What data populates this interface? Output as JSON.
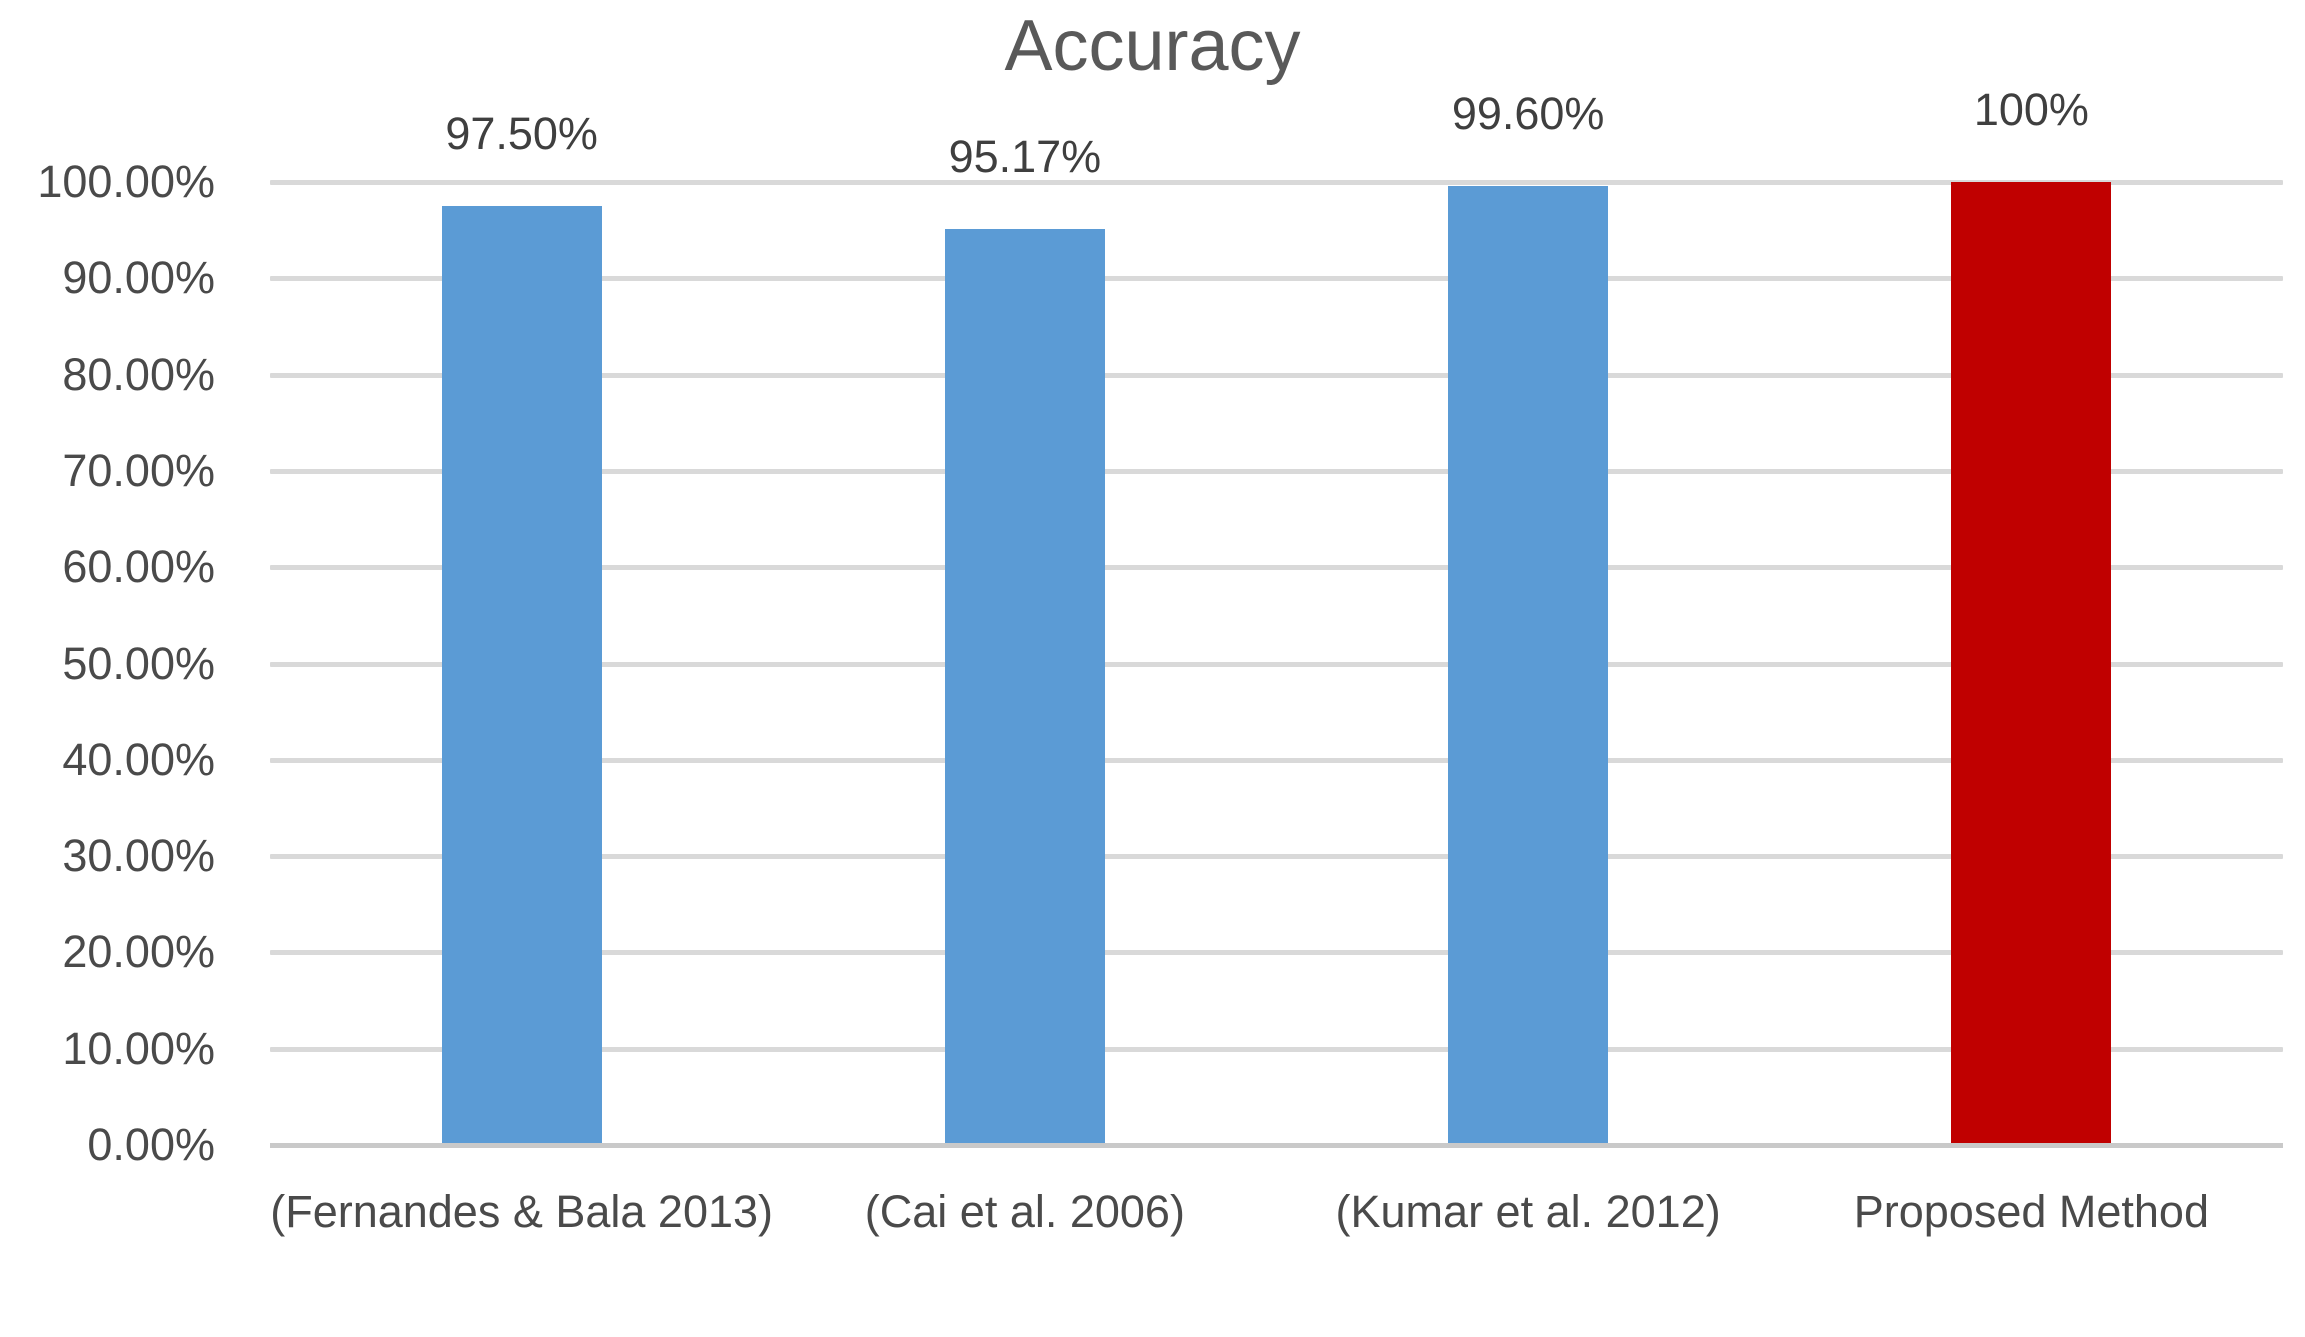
{
  "chart_data": {
    "type": "bar",
    "title": "Accuracy",
    "categories": [
      "(Fernandes & Bala 2013)",
      "(Cai et al. 2006)",
      "(Kumar et al. 2012)",
      "Proposed Method"
    ],
    "values": [
      97.5,
      95.17,
      99.6,
      100
    ],
    "data_labels": [
      "97.50%",
      "95.17%",
      "99.60%",
      "100%"
    ],
    "bar_colors": [
      "#5B9BD5",
      "#5B9BD5",
      "#5B9BD5",
      "#C00000"
    ],
    "y_tick_labels": [
      "0.00%",
      "10.00%",
      "20.00%",
      "30.00%",
      "40.00%",
      "50.00%",
      "60.00%",
      "70.00%",
      "80.00%",
      "90.00%",
      "100.00%"
    ],
    "ylim": [
      0,
      100
    ],
    "grid": true,
    "legend_position": "none",
    "gridline_color": "#D9D9D9",
    "axis_line_color": "#C9C9C9",
    "title_color": "#595959",
    "data_label_color": "#3F3F3F",
    "axis_label_color": "#4A4A4A",
    "background_color": "#FFFFFF"
  }
}
